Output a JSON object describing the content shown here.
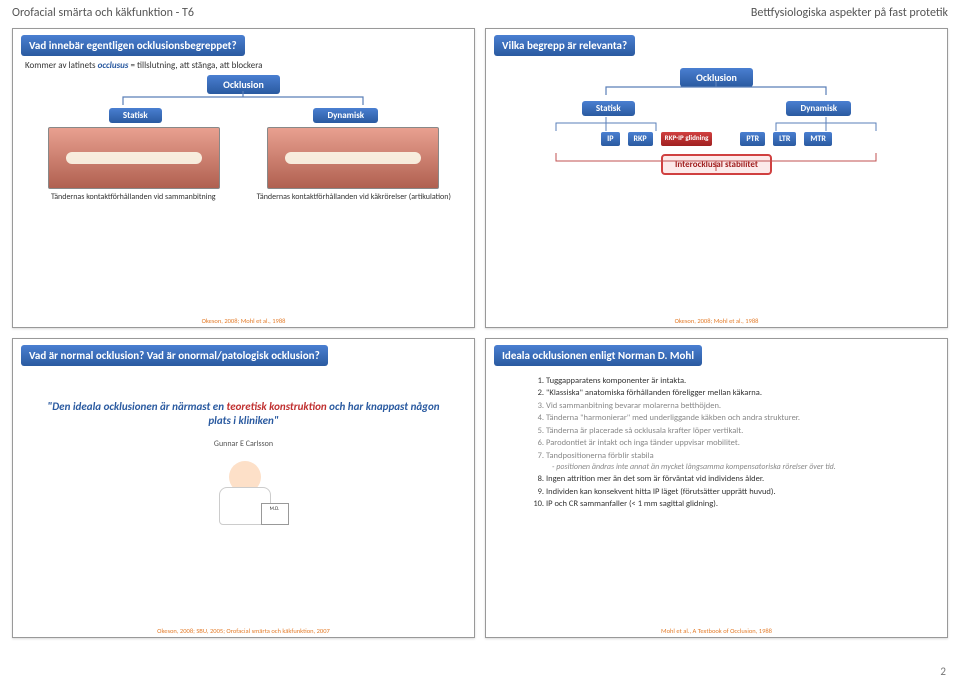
{
  "header": {
    "left": "Orofacial smärta och käkfunktion - T6",
    "right": "Bettfysiologiska aspekter på fast protetik"
  },
  "page_number": "2",
  "slide1": {
    "title": "Vad innebär egentligen ocklusionsbegreppet?",
    "sub_pre": "Kommer av latinets ",
    "sub_emph": "occlusus",
    "sub_post": " = tillslutning, att stänga, att blockera",
    "root": "Ocklusion",
    "n1": "Statisk",
    "n2": "Dynamisk",
    "cap1": "Tändernas kontaktförhållanden vid sammanbitning",
    "cap2": "Tändernas kontaktförhållanden vid käkrörelser (artikulation)",
    "cite": "Okeson, 2008; Mohl et al., 1988"
  },
  "slide2": {
    "title": "Vilka begrepp är relevanta?",
    "root": "Ocklusion",
    "n1": "Statisk",
    "n2": "Dynamisk",
    "leaves_left": [
      "IP",
      "RKP"
    ],
    "leaf_red": "RKP-IP glidning",
    "leaves_right": [
      "PTR",
      "LTR",
      "MTR"
    ],
    "stability": "Interocklusal stabilitet",
    "cite": "Okeson, 2008; Mohl et al., 1988"
  },
  "slide3": {
    "title": "Vad är normal ocklusion? Vad är onormal/patologisk ocklusion?",
    "cite": "Okeson, 2008; SBU, 2005; Orofacial smärta och käkfunktion, 2007"
  },
  "slide4": {
    "quote_pre": "\"Den ideala ocklusionen är närmast en ",
    "quote_emph": "teoretisk konstruktion",
    "quote_post": " och har knappast någon plats i kliniken\"",
    "author": "Gunnar E Carlsson",
    "sign": "M.D."
  },
  "slide5": {
    "title": "Ideala ocklusionen enligt Norman D. Mohl",
    "items": [
      {
        "t": "Tuggapparatens komponenter är intakta.",
        "dark": true
      },
      {
        "t": "\"Klassiska\" anatomiska förhållanden föreligger mellan käkarna.",
        "dark": true
      },
      {
        "t": "Vid sammanbitning bevarar molarerna betthöjden.",
        "dark": false
      },
      {
        "t": "Tänderna \"harmonierar\" med underliggande käkben och andra strukturer.",
        "dark": false
      },
      {
        "t": "Tänderna är placerade så ocklusala krafter löper vertikalt.",
        "dark": false
      },
      {
        "t": "Parodontiet är intakt och inga tänder uppvisar mobilitet.",
        "dark": false
      },
      {
        "t": "Tandpositionerna förblir stabila",
        "dark": false,
        "sub": "- positionen ändras inte annat än mycket långsamma kompensatoriska rörelser över tid."
      },
      {
        "t": "Ingen attrition mer än det som är förväntat vid individens ålder.",
        "dark": true
      },
      {
        "t": "Individen kan konsekvent hitta IP läget (förutsätter upprätt huvud).",
        "dark": true
      },
      {
        "t": "IP och CR sammanfaller (< 1 mm sagittal glidning).",
        "dark": true
      }
    ],
    "cite": "Mohl et al., A Textbook of Occlusion, 1988"
  }
}
